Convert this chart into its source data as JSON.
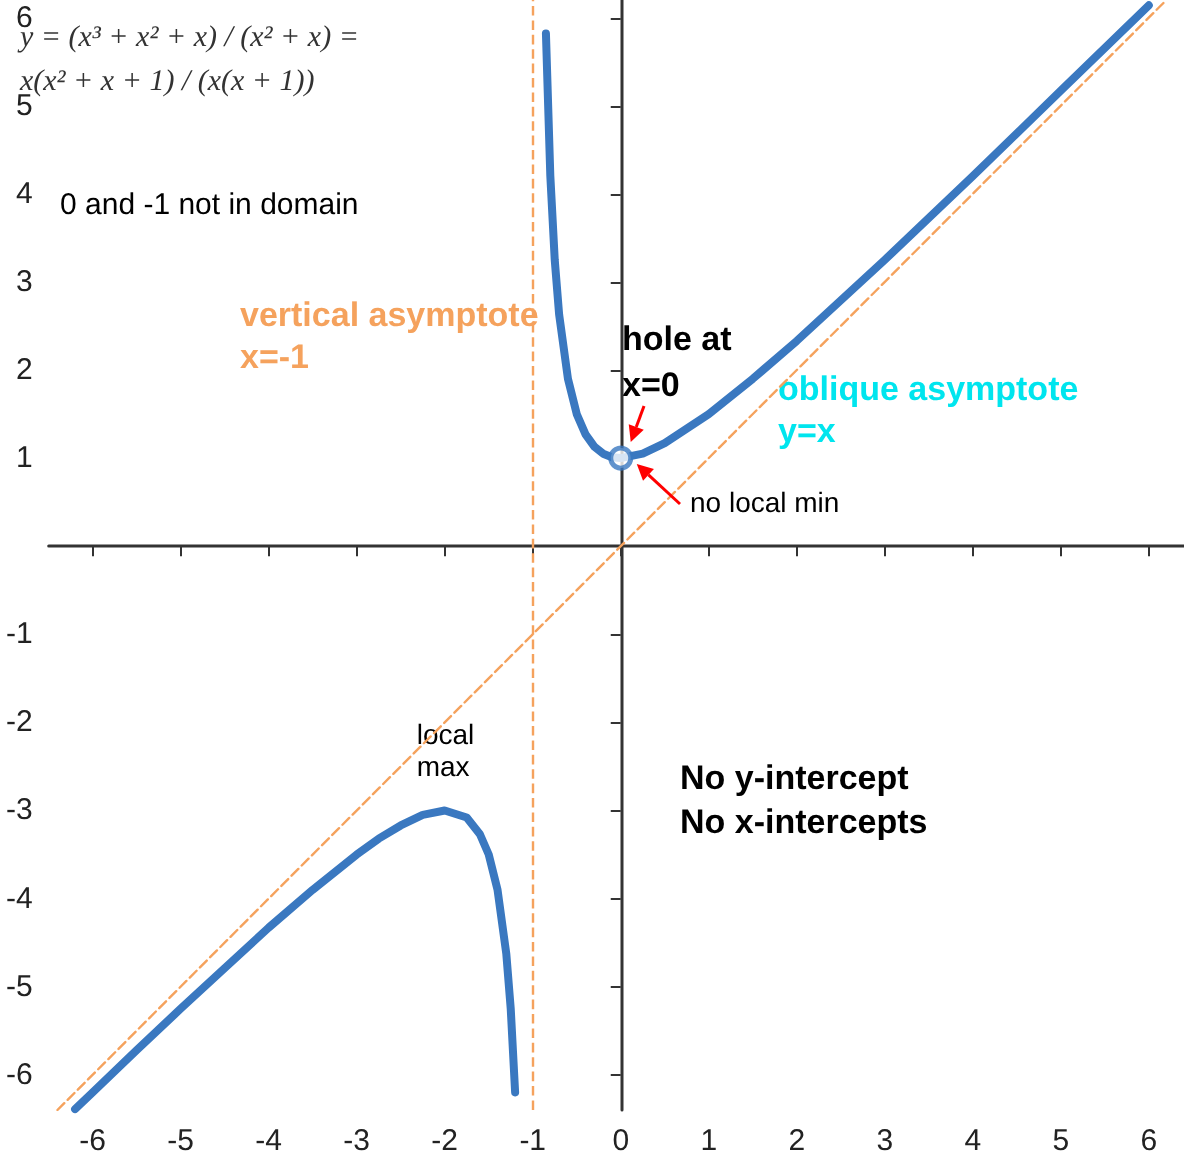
{
  "chart_data": {
    "type": "line",
    "xlim": [
      -6.5,
      6.4
    ],
    "ylim": [
      -6.4,
      6.2
    ],
    "xticks": [
      -6,
      -5,
      -4,
      -3,
      -2,
      -1,
      0,
      1,
      2,
      3,
      4,
      5,
      6
    ],
    "yticks": [
      -6,
      -5,
      -4,
      -3,
      -2,
      -1,
      1,
      2,
      3,
      4,
      5,
      6
    ],
    "grid": false,
    "series": [
      {
        "color": "#3a78c0",
        "marker": "none",
        "line_style": "solid",
        "x": [
          -6.2,
          -6,
          -5.5,
          -5,
          -4.5,
          -4,
          -3.5,
          -3,
          -2.75,
          -2.5,
          -2.25,
          -2,
          -1.75,
          -1.6,
          -1.5,
          -1.4,
          -1.3,
          -1.25,
          -1.2,
          -1,
          -0.85,
          -0.8,
          -0.75,
          -0.7,
          -0.6,
          -0.5,
          -0.4,
          -0.3,
          -0.2,
          -0.1,
          0,
          0.25,
          0.5,
          1,
          1.5,
          2,
          3,
          4,
          5,
          6
        ],
        "values": [
          -6.39,
          -6.2,
          -5.72,
          -5.25,
          -4.79,
          -4.33,
          -3.9,
          -3.5,
          -3.32,
          -3.17,
          -3.05,
          -3,
          -3.08,
          -3.27,
          -3.5,
          -3.9,
          -4.63,
          -5.25,
          -6.2,
          null,
          5.82,
          4.2,
          3.25,
          2.63,
          1.9,
          1.5,
          1.27,
          1.13,
          1.05,
          1.01,
          1,
          1.05,
          1.17,
          1.5,
          1.9,
          2.33,
          3.25,
          4.2,
          5.17,
          6.14
        ]
      },
      {
        "type": "line",
        "color": "#f5a25d",
        "marker": "none",
        "line_style": "dashed",
        "x": [
          -6.4,
          6.2
        ],
        "values": [
          -6.4,
          6.2
        ]
      },
      {
        "type": "scatter",
        "color": "#3a78c0",
        "marker": "circle",
        "x": [
          0
        ],
        "values": [
          1
        ]
      }
    ],
    "ref_lines": [
      {
        "axis": "x",
        "value": -1,
        "label": "vertical asymptote\nx=-1",
        "color": "#f5a25d",
        "line_style": "dashed"
      }
    ],
    "annotations": [
      "y = (x³ + x² + x) / (x² + x) = x(x² + x + 1) / (x(x + 1))",
      "0 and -1 not in domain",
      "No y-intercept\nNo x-intercepts",
      "hole at\nx=0",
      "no local min",
      {
        "text": "local\nmax",
        "x": -2,
        "y": -3
      },
      "oblique asymptote\ny=x"
    ]
  }
}
